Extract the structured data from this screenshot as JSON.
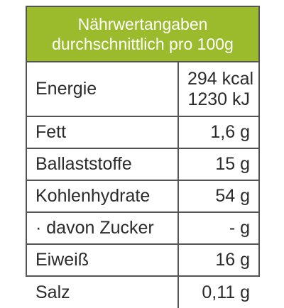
{
  "header": {
    "line1": "Nährwertangaben",
    "line2": "durchschnittlich pro 100g"
  },
  "rows": [
    {
      "label": "Energie",
      "value_line1": "294 kcal",
      "value_line2": "1230 kJ"
    },
    {
      "label": "Fett",
      "value": "1,6 g"
    },
    {
      "label": "Ballaststoffe",
      "value": "15 g"
    },
    {
      "label": "Kohlenhydrate",
      "value": "54 g"
    },
    {
      "label": "· davon Zucker",
      "value": "- g"
    },
    {
      "label": "Eiweiß",
      "value": "16 g"
    },
    {
      "label": "Salz",
      "value": "0,11 g"
    }
  ],
  "colors": {
    "header_bg": "#9bbb2d",
    "border": "#555555",
    "text": "#2b2b2b"
  }
}
